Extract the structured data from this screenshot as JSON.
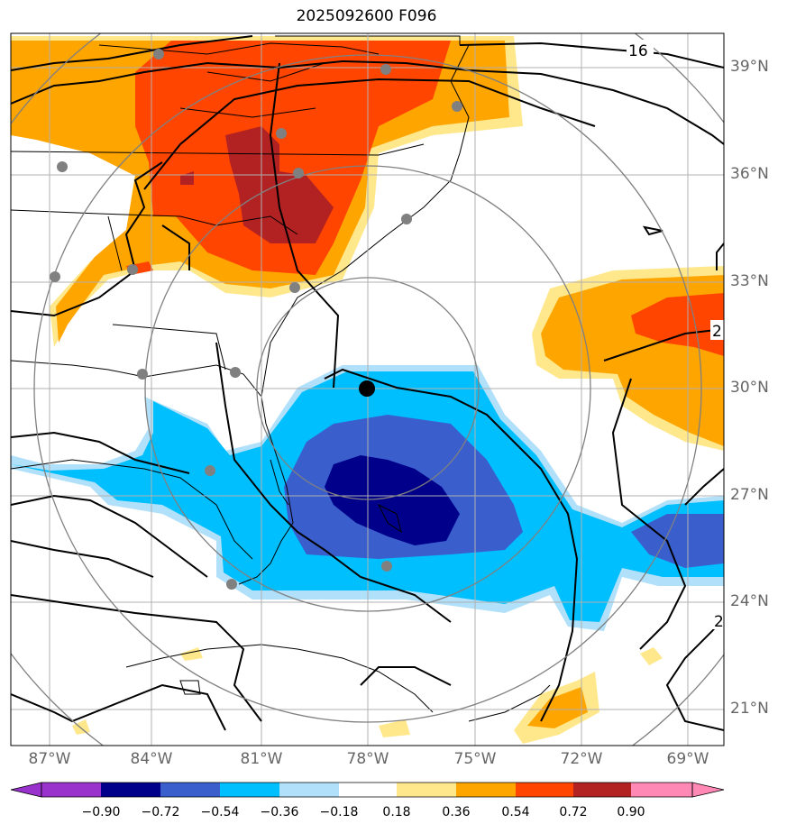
{
  "title": "2025092600 F096",
  "lat_labels": [
    "39°N",
    "36°N",
    "33°N",
    "30°N",
    "27°N",
    "24°N",
    "21°N"
  ],
  "lon_labels": [
    "87°W",
    "84°W",
    "81°W",
    "78°W",
    "75°W",
    "72°W",
    "69°W"
  ],
  "contour_labels": [
    "16",
    "2",
    "2"
  ],
  "colorbar": {
    "labels": [
      "−0.90",
      "−0.72",
      "−0.54",
      "−0.36",
      "−0.18",
      "0.18",
      "0.36",
      "0.54",
      "0.72",
      "0.90"
    ],
    "colors": [
      "#9932cc",
      "#00008b",
      "#3a5fcd",
      "#00bfff",
      "#b0e0fa",
      "#ffffff",
      "#ffe88c",
      "#ffa500",
      "#ff4500",
      "#b22222",
      "#ff88b4"
    ]
  },
  "colors": {
    "contour": "#000000",
    "range_rings": "#808080",
    "station_dots": "#808080",
    "center_marker": "#000000"
  }
}
